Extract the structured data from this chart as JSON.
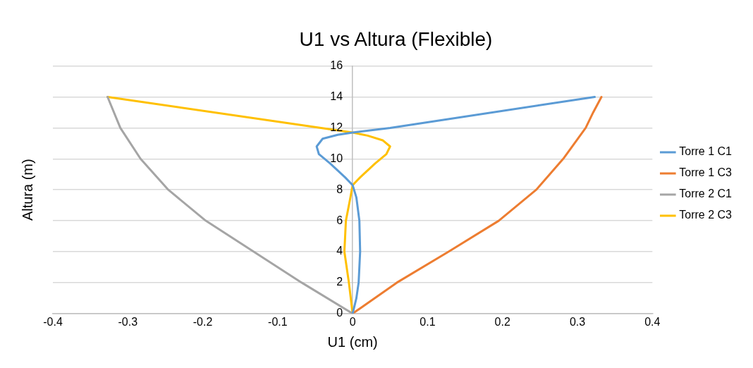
{
  "chart_data": {
    "type": "line",
    "title": "U1 vs Altura (Flexible)",
    "xlabel": "U1 (cm)",
    "ylabel": "Altura (m)",
    "xlim": [
      -0.4,
      0.4
    ],
    "xticks": [
      -0.4,
      -0.3,
      -0.2,
      -0.1,
      0,
      0.1,
      0.2,
      0.3,
      0.4
    ],
    "ylim": [
      0,
      16
    ],
    "yticks": [
      0,
      2,
      4,
      6,
      8,
      10,
      12,
      14,
      16
    ],
    "grid": "y",
    "legend": "right",
    "marker": "none",
    "line_style": "solid",
    "series": [
      {
        "name": "Torre 1 C1",
        "color": "#5b9bd5",
        "x": [
          0,
          0.005,
          0.008,
          0.01,
          0.009,
          0.005,
          0,
          -0.01,
          -0.03,
          -0.045,
          -0.048,
          -0.04,
          -0.02,
          0,
          0.05,
          0.323
        ],
        "values": [
          0,
          1,
          2,
          4,
          6,
          7.5,
          8.3,
          8.8,
          9.7,
          10.3,
          10.8,
          11.3,
          11.55,
          11.7,
          12,
          14
        ]
      },
      {
        "name": "Torre 1 C3",
        "color": "#ed7d31",
        "x": [
          0,
          0.059,
          0.128,
          0.195,
          0.245,
          0.281,
          0.311,
          0.321,
          0.332
        ],
        "values": [
          0,
          2,
          4,
          6,
          8,
          10,
          12,
          13,
          14
        ]
      },
      {
        "name": "Torre 2 C1",
        "color": "#a5a5a5",
        "x": [
          0,
          -0.068,
          -0.132,
          -0.196,
          -0.246,
          -0.283,
          -0.31,
          -0.327
        ],
        "values": [
          0,
          2,
          4,
          6,
          8,
          10,
          12,
          14
        ]
      },
      {
        "name": "Torre 2 C3",
        "color": "#ffc000",
        "x": [
          0,
          -0.005,
          -0.011,
          -0.009,
          -0.003,
          0,
          0.01,
          0.03,
          0.045,
          0.05,
          0.04,
          0.02,
          0,
          -0.327
        ],
        "values": [
          0,
          2,
          4,
          6,
          7.5,
          8.3,
          8.8,
          9.7,
          10.3,
          10.8,
          11.2,
          11.5,
          11.7,
          14
        ]
      }
    ]
  }
}
